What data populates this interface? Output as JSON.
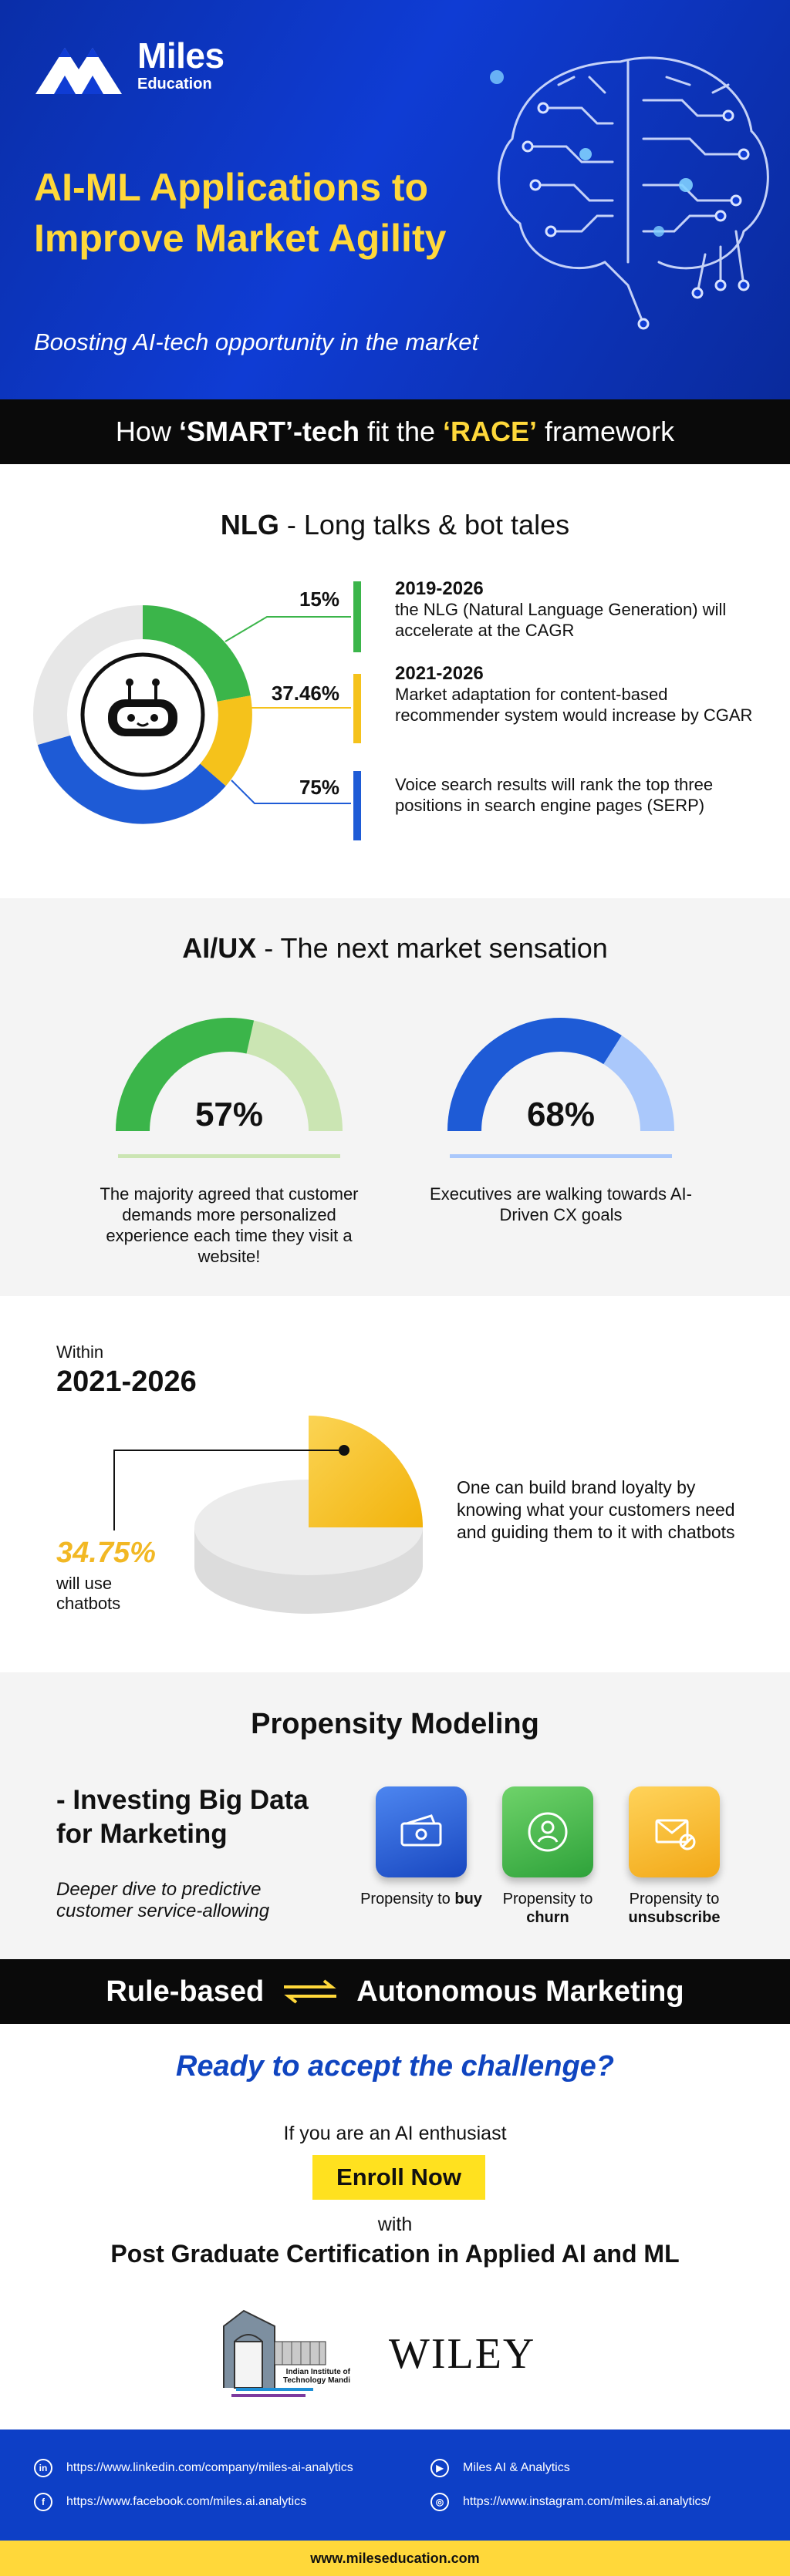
{
  "brand": {
    "name": "Miles",
    "sub": "Education"
  },
  "hero": {
    "title": "AI-ML Applications to Improve Market Agility",
    "subtitle": "Boosting AI-tech opportunity in the market"
  },
  "race_banner": {
    "pre": "How ",
    "smart": "‘SMART’-tech",
    "mid": " fit the ",
    "race": "‘RACE’",
    "post": " framework"
  },
  "nlg": {
    "title_bold": "NLG",
    "title_rest": " - Long talks & bot tales",
    "items": [
      {
        "pct": "15%",
        "year": "2019-2026",
        "text": "the NLG (Natural Language Generation) will accelerate at the CAGR",
        "color": "#3bb54a"
      },
      {
        "pct": "37.46%",
        "year": "2021-2026",
        "text": "Market adaptation for content-based recommender system would increase by CGAR",
        "color": "#f5c21b"
      },
      {
        "pct": "75%",
        "year": "",
        "text": "Voice search results will rank the top three positions in search engine pages (SERP)",
        "color": "#1e5bd6"
      }
    ],
    "donut_values": [
      15,
      37.46,
      75
    ]
  },
  "aiux": {
    "title_bold": "AI/UX",
    "title_rest": " - The next market sensation",
    "gauges": [
      {
        "value": 57,
        "label": "57%",
        "caption": "The majority agreed that customer demands more personalized experience each time they visit a website!",
        "color": "#3bb54a",
        "track": "#cbe5b3"
      },
      {
        "value": 68,
        "label": "68%",
        "caption": "Executives are walking towards AI-Driven CX goals",
        "color": "#1e5bd6",
        "track": "#aac8fb"
      }
    ]
  },
  "chatbots": {
    "within": "Within",
    "years": "2021-2026",
    "pct": "34.75%",
    "pct_value": 34.75,
    "will_use": "will use chatbots",
    "text": "One can build brand loyalty by knowing what your customers need and guiding them to it with chatbots"
  },
  "propensity": {
    "title": "Propensity Modeling",
    "heading": "- Investing Big Data for Marketing",
    "sub": "Deeper dive to predictive customer service-allowing",
    "cards": [
      {
        "pre": "Propensity to ",
        "bold": "buy",
        "icon": "money-icon",
        "color": "#1e5bd6"
      },
      {
        "pre": "Propensity to ",
        "bold": "churn",
        "icon": "user-churn-icon",
        "color": "#3bb54a"
      },
      {
        "pre": "Propensity to ",
        "bold": "unsubscribe",
        "icon": "mail-unsubscribe-icon",
        "color": "#f5c21b"
      }
    ]
  },
  "rule_banner": {
    "left": "Rule-based",
    "right": "Autonomous Marketing"
  },
  "cta": {
    "ready": "Ready to accept the challenge?",
    "enthusiast": "If you are an AI enthusiast",
    "enroll": "Enroll Now",
    "with": "with",
    "program": "Post Graduate Certification in Applied AI and ML",
    "iit_text": "Indian Institute of Technology Mandi",
    "wiley": "WILEY"
  },
  "footer": {
    "linkedin": "https://www.linkedin.com/company/miles-ai-analytics",
    "youtube": "Miles AI & Analytics",
    "facebook": "https://www.facebook.com/miles.ai.analytics",
    "instagram": "https://www.instagram.com/miles.ai.analytics/",
    "site": "www.mileseducation.com"
  }
}
